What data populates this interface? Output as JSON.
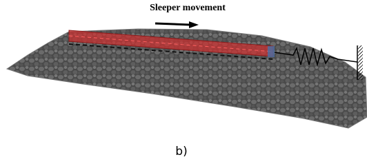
{
  "figure": {
    "title": "Sleeper movement",
    "caption": "b)"
  }
}
